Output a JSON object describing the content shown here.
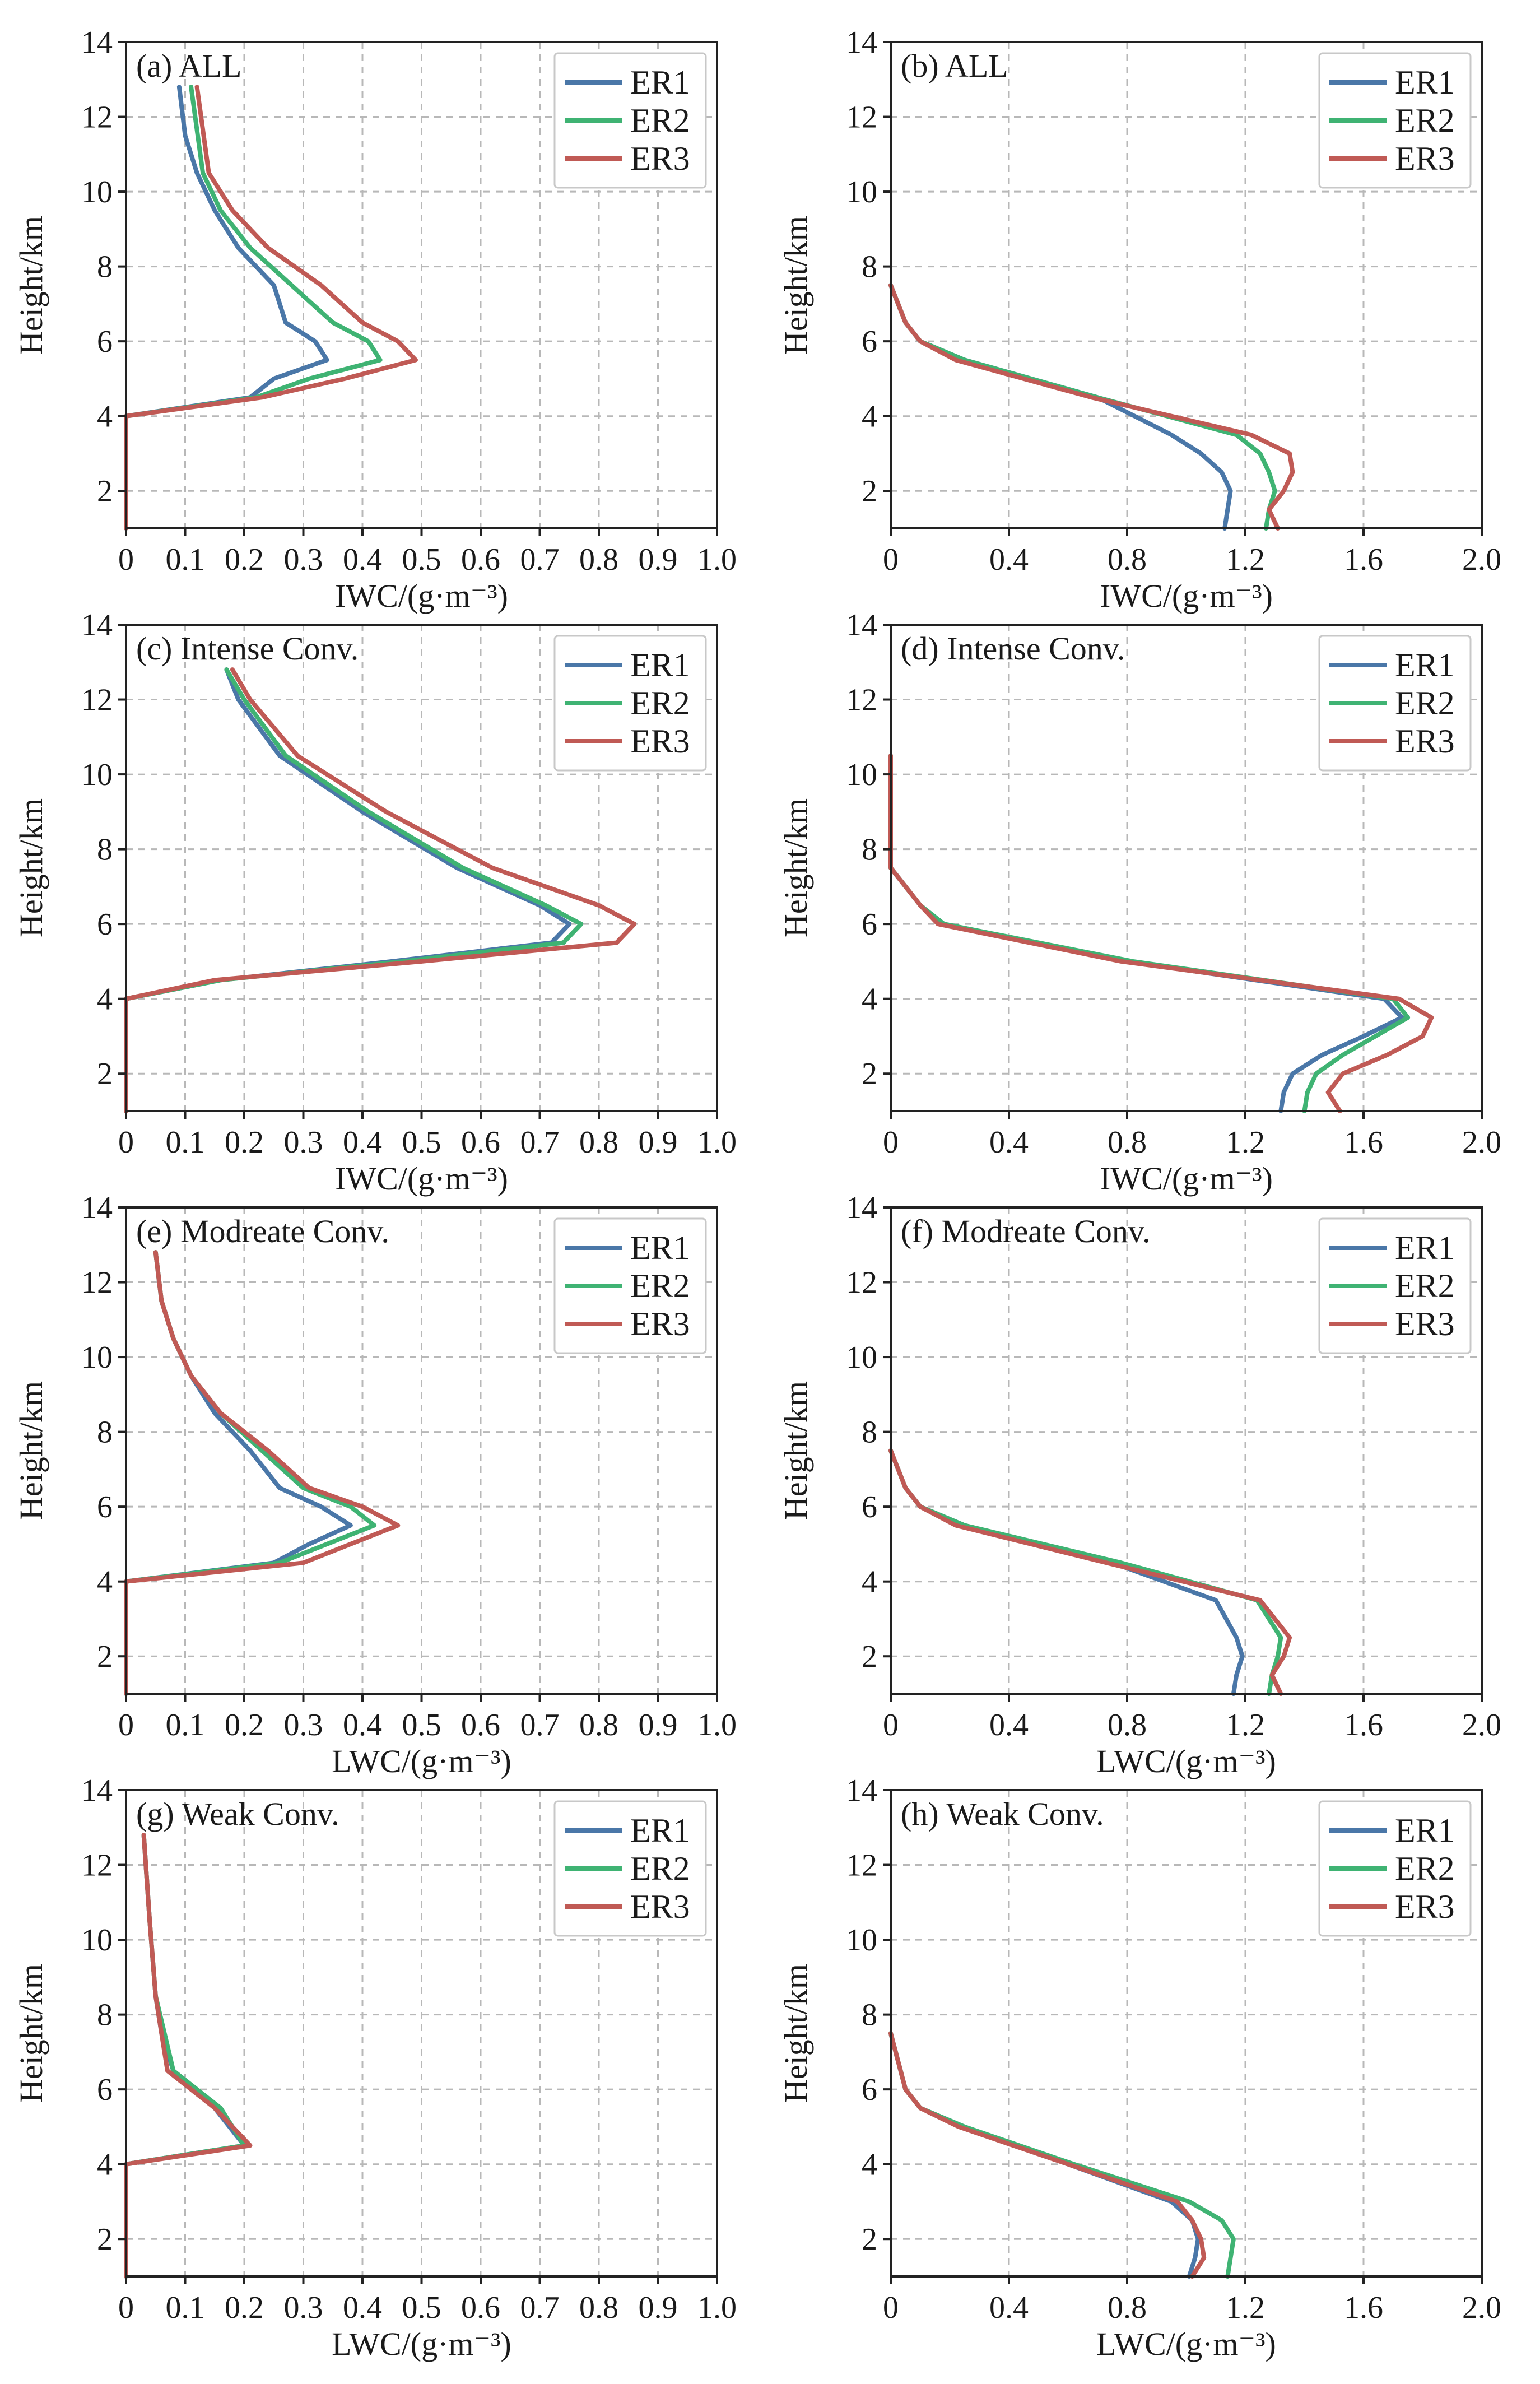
{
  "colors": {
    "ER1": "#4a77a8",
    "ER2": "#3fb373",
    "ER3": "#c05a55",
    "grid": "#b8b8b8",
    "axis": "#222222"
  },
  "chart_data": [
    {
      "id": "a",
      "type": "line",
      "title": "(a) ALL",
      "xlabel": "IWC/(g·m⁻³)",
      "ylabel": "Height/km",
      "xlim": [
        0,
        1.0
      ],
      "ylim": [
        1,
        14
      ],
      "xticks": [
        "0",
        "0.1",
        "0.2",
        "0.3",
        "0.4",
        "0.5",
        "0.6",
        "0.7",
        "0.8",
        "0.9",
        "1.0"
      ],
      "yticks": [
        "2",
        "4",
        "6",
        "8",
        "10",
        "12",
        "14"
      ],
      "legend": "top-right",
      "grid": true,
      "series": [
        {
          "name": "ER1",
          "x": [
            0,
            0,
            0.21,
            0.25,
            0.34,
            0.32,
            0.27,
            0.25,
            0.19,
            0.15,
            0.12,
            0.1,
            0.09
          ],
          "y": [
            1,
            4,
            4.5,
            5,
            5.5,
            6,
            6.5,
            7.5,
            8.5,
            9.5,
            10.5,
            11.5,
            12.8
          ]
        },
        {
          "name": "ER2",
          "x": [
            0,
            0,
            0.22,
            0.31,
            0.43,
            0.41,
            0.35,
            0.28,
            0.21,
            0.16,
            0.13,
            0.11
          ],
          "y": [
            1,
            4,
            4.5,
            5,
            5.5,
            6,
            6.5,
            7.5,
            8.5,
            9.5,
            10.5,
            12.8
          ]
        },
        {
          "name": "ER3",
          "x": [
            0,
            0,
            0.23,
            0.37,
            0.49,
            0.46,
            0.4,
            0.33,
            0.24,
            0.18,
            0.14,
            0.12
          ],
          "y": [
            1,
            4,
            4.5,
            5,
            5.5,
            6,
            6.5,
            7.5,
            8.5,
            9.5,
            10.5,
            12.8
          ]
        }
      ]
    },
    {
      "id": "b",
      "type": "line",
      "title": "(b) ALL",
      "xlabel": "IWC/(g·m⁻³)",
      "ylabel": "Height/km",
      "xlim": [
        0,
        2.0
      ],
      "ylim": [
        1,
        14
      ],
      "xticks": [
        "0",
        "0.4",
        "0.8",
        "1.2",
        "1.6",
        "2.0"
      ],
      "yticks": [
        "2",
        "4",
        "6",
        "8",
        "10",
        "12",
        "14"
      ],
      "legend": "top-right",
      "grid": true,
      "series": [
        {
          "name": "ER1",
          "x": [
            1.13,
            1.14,
            1.15,
            1.12,
            1.05,
            0.95,
            0.7,
            0.25,
            0.1,
            0.05,
            0
          ],
          "y": [
            1,
            1.5,
            2,
            2.5,
            3,
            3.5,
            4.5,
            5.5,
            6,
            6.5,
            7.5
          ]
        },
        {
          "name": "ER2",
          "x": [
            1.27,
            1.28,
            1.3,
            1.28,
            1.25,
            1.17,
            0.7,
            0.25,
            0.1,
            0.05,
            0
          ],
          "y": [
            1,
            1.5,
            2,
            2.5,
            3,
            3.5,
            4.5,
            5.5,
            6,
            6.5,
            7.5
          ]
        },
        {
          "name": "ER3",
          "x": [
            1.31,
            1.28,
            1.33,
            1.36,
            1.35,
            1.22,
            0.68,
            0.22,
            0.1,
            0.05,
            0
          ],
          "y": [
            1,
            1.5,
            2,
            2.5,
            3,
            3.5,
            4.5,
            5.5,
            6,
            6.5,
            7.5
          ]
        }
      ]
    },
    {
      "id": "c",
      "type": "line",
      "title": "(c) Intense Conv.",
      "xlabel": "IWC/(g·m⁻³)",
      "ylabel": "Height/km",
      "xlim": [
        0,
        1.0
      ],
      "ylim": [
        1,
        14
      ],
      "xticks": [
        "0",
        "0.1",
        "0.2",
        "0.3",
        "0.4",
        "0.5",
        "0.6",
        "0.7",
        "0.8",
        "0.9",
        "1.0"
      ],
      "yticks": [
        "2",
        "4",
        "6",
        "8",
        "10",
        "12",
        "14"
      ],
      "legend": "top-right",
      "grid": true,
      "series": [
        {
          "name": "ER1",
          "x": [
            0,
            0,
            0.16,
            0.45,
            0.72,
            0.75,
            0.7,
            0.56,
            0.4,
            0.26,
            0.19,
            0.17
          ],
          "y": [
            1,
            4,
            4.5,
            5,
            5.5,
            6,
            6.5,
            7.5,
            9,
            10.5,
            12,
            12.8
          ]
        },
        {
          "name": "ER2",
          "x": [
            0,
            0,
            0.16,
            0.47,
            0.74,
            0.77,
            0.71,
            0.57,
            0.41,
            0.27,
            0.2,
            0.17
          ],
          "y": [
            1,
            4,
            4.5,
            5,
            5.5,
            6,
            6.5,
            7.5,
            9,
            10.5,
            12,
            12.8
          ]
        },
        {
          "name": "ER3",
          "x": [
            0,
            0,
            0.15,
            0.5,
            0.83,
            0.86,
            0.8,
            0.62,
            0.44,
            0.29,
            0.21,
            0.18
          ],
          "y": [
            1,
            4,
            4.5,
            5,
            5.5,
            6,
            6.5,
            7.5,
            9,
            10.5,
            12,
            12.8
          ]
        }
      ]
    },
    {
      "id": "d",
      "type": "line",
      "title": "(d) Intense Conv.",
      "xlabel": "IWC/(g·m⁻³)",
      "ylabel": "Height/km",
      "xlim": [
        0,
        2.0
      ],
      "ylim": [
        1,
        14
      ],
      "xticks": [
        "0",
        "0.4",
        "0.8",
        "1.2",
        "1.6",
        "2.0"
      ],
      "yticks": [
        "2",
        "4",
        "6",
        "8",
        "10",
        "12",
        "14"
      ],
      "legend": "top-right",
      "grid": true,
      "series": [
        {
          "name": "ER1",
          "x": [
            1.32,
            1.33,
            1.36,
            1.46,
            1.6,
            1.73,
            1.67,
            0.8,
            0.18,
            0.1,
            0.05,
            0,
            0
          ],
          "y": [
            1,
            1.5,
            2,
            2.5,
            3,
            3.5,
            4,
            5,
            6,
            6.5,
            7,
            7.5,
            10.5
          ]
        },
        {
          "name": "ER2",
          "x": [
            1.4,
            1.41,
            1.44,
            1.53,
            1.64,
            1.75,
            1.7,
            0.82,
            0.18,
            0.1,
            0.05,
            0,
            0
          ],
          "y": [
            1,
            1.5,
            2,
            2.5,
            3,
            3.5,
            4,
            5,
            6,
            6.5,
            7,
            7.5,
            10.5
          ]
        },
        {
          "name": "ER3",
          "x": [
            1.52,
            1.48,
            1.53,
            1.68,
            1.8,
            1.83,
            1.72,
            0.78,
            0.16,
            0.1,
            0.05,
            0,
            0
          ],
          "y": [
            1,
            1.5,
            2,
            2.5,
            3,
            3.5,
            4,
            5,
            6,
            6.5,
            7,
            7.5,
            10.5
          ]
        }
      ]
    },
    {
      "id": "e",
      "type": "line",
      "title": "(e) Modreate Conv.",
      "xlabel": "LWC/(g·m⁻³)",
      "ylabel": "Height/km",
      "xlim": [
        0,
        1.0
      ],
      "ylim": [
        1,
        14
      ],
      "xticks": [
        "0",
        "0.1",
        "0.2",
        "0.3",
        "0.4",
        "0.5",
        "0.6",
        "0.7",
        "0.8",
        "0.9",
        "1.0"
      ],
      "yticks": [
        "2",
        "4",
        "6",
        "8",
        "10",
        "12",
        "14"
      ],
      "legend": "top-right",
      "grid": true,
      "series": [
        {
          "name": "ER1",
          "x": [
            0,
            0,
            0.25,
            0.31,
            0.38,
            0.33,
            0.26,
            0.21,
            0.15,
            0.11,
            0.08,
            0.06,
            0.05
          ],
          "y": [
            1,
            4,
            4.5,
            5,
            5.5,
            6,
            6.5,
            7.5,
            8.5,
            9.5,
            10.5,
            11.5,
            12.8
          ]
        },
        {
          "name": "ER2",
          "x": [
            0,
            0,
            0.26,
            0.34,
            0.42,
            0.38,
            0.3,
            0.23,
            0.16,
            0.11,
            0.08,
            0.06,
            0.05
          ],
          "y": [
            1,
            4,
            4.5,
            5,
            5.5,
            6,
            6.5,
            7.5,
            8.5,
            9.5,
            10.5,
            11.5,
            12.8
          ]
        },
        {
          "name": "ER3",
          "x": [
            0,
            0,
            0.3,
            0.38,
            0.46,
            0.4,
            0.31,
            0.24,
            0.16,
            0.11,
            0.08,
            0.06,
            0.05
          ],
          "y": [
            1,
            4,
            4.5,
            5,
            5.5,
            6,
            6.5,
            7.5,
            8.5,
            9.5,
            10.5,
            11.5,
            12.8
          ]
        }
      ]
    },
    {
      "id": "f",
      "type": "line",
      "title": "(f) Modreate Conv.",
      "xlabel": "LWC/(g·m⁻³)",
      "ylabel": "Height/km",
      "xlim": [
        0,
        2.0
      ],
      "ylim": [
        1,
        14
      ],
      "xticks": [
        "0",
        "0.4",
        "0.8",
        "1.2",
        "1.6",
        "2.0"
      ],
      "yticks": [
        "2",
        "4",
        "6",
        "8",
        "10",
        "12",
        "14"
      ],
      "legend": "top-right",
      "grid": true,
      "series": [
        {
          "name": "ER1",
          "x": [
            1.16,
            1.17,
            1.19,
            1.17,
            1.1,
            0.75,
            0.25,
            0.1,
            0.05,
            0
          ],
          "y": [
            1,
            1.5,
            2,
            2.5,
            3.5,
            4.5,
            5.5,
            6,
            6.5,
            7.5
          ]
        },
        {
          "name": "ER2",
          "x": [
            1.28,
            1.29,
            1.31,
            1.32,
            1.24,
            0.78,
            0.25,
            0.1,
            0.05,
            0
          ],
          "y": [
            1,
            1.5,
            2,
            2.5,
            3.5,
            4.5,
            5.5,
            6,
            6.5,
            7.5
          ]
        },
        {
          "name": "ER3",
          "x": [
            1.32,
            1.29,
            1.33,
            1.35,
            1.25,
            0.73,
            0.22,
            0.1,
            0.05,
            0
          ],
          "y": [
            1,
            1.5,
            2,
            2.5,
            3.5,
            4.5,
            5.5,
            6,
            6.5,
            7.5
          ]
        }
      ]
    },
    {
      "id": "g",
      "type": "line",
      "title": "(g) Weak Conv.",
      "xlabel": "LWC/(g·m⁻³)",
      "ylabel": "Height/km",
      "xlim": [
        0,
        1.0
      ],
      "ylim": [
        1,
        14
      ],
      "xticks": [
        "0",
        "0.1",
        "0.2",
        "0.3",
        "0.4",
        "0.5",
        "0.6",
        "0.7",
        "0.8",
        "0.9",
        "1.0"
      ],
      "yticks": [
        "2",
        "4",
        "6",
        "8",
        "10",
        "12",
        "14"
      ],
      "legend": "top-right",
      "grid": true,
      "series": [
        {
          "name": "ER1",
          "x": [
            0,
            0,
            0.2,
            0.15,
            0.08,
            0.06,
            0.05,
            0.04,
            0.03
          ],
          "y": [
            1,
            4,
            4.5,
            5.5,
            6.5,
            7.5,
            8.5,
            10.5,
            12.8
          ]
        },
        {
          "name": "ER2",
          "x": [
            0,
            0,
            0.2,
            0.16,
            0.08,
            0.065,
            0.05,
            0.04,
            0.03
          ],
          "y": [
            1,
            4,
            4.5,
            5.5,
            6.5,
            7.5,
            8.5,
            10.5,
            12.8
          ]
        },
        {
          "name": "ER3",
          "x": [
            0,
            0,
            0.21,
            0.15,
            0.07,
            0.06,
            0.05,
            0.04,
            0.03
          ],
          "y": [
            1,
            4,
            4.5,
            5.5,
            6.5,
            7.5,
            8.5,
            10.5,
            12.8
          ]
        }
      ]
    },
    {
      "id": "h",
      "type": "line",
      "title": "(h) Weak Conv.",
      "xlabel": "LWC/(g·m⁻³)",
      "ylabel": "Height/km",
      "xlim": [
        0,
        2.0
      ],
      "ylim": [
        1,
        14
      ],
      "xticks": [
        "0",
        "0.4",
        "0.8",
        "1.2",
        "1.6",
        "2.0"
      ],
      "yticks": [
        "2",
        "4",
        "6",
        "8",
        "10",
        "12",
        "14"
      ],
      "legend": "top-right",
      "grid": true,
      "series": [
        {
          "name": "ER1",
          "x": [
            1.01,
            1.03,
            1.04,
            1.02,
            0.95,
            0.6,
            0.25,
            0.1,
            0.05,
            0
          ],
          "y": [
            1,
            1.5,
            2,
            2.5,
            3,
            4,
            5,
            5.5,
            6,
            7.5
          ]
        },
        {
          "name": "ER2",
          "x": [
            1.14,
            1.15,
            1.16,
            1.12,
            1.01,
            0.62,
            0.25,
            0.1,
            0.05,
            0
          ],
          "y": [
            1,
            1.5,
            2,
            2.5,
            3,
            4,
            5,
            5.5,
            6,
            7.5
          ]
        },
        {
          "name": "ER3",
          "x": [
            1.02,
            1.06,
            1.05,
            1.02,
            0.97,
            0.6,
            0.23,
            0.1,
            0.05,
            0
          ],
          "y": [
            1,
            1.5,
            2,
            2.5,
            3,
            4,
            5,
            5.5,
            6,
            7.5
          ]
        }
      ]
    }
  ]
}
